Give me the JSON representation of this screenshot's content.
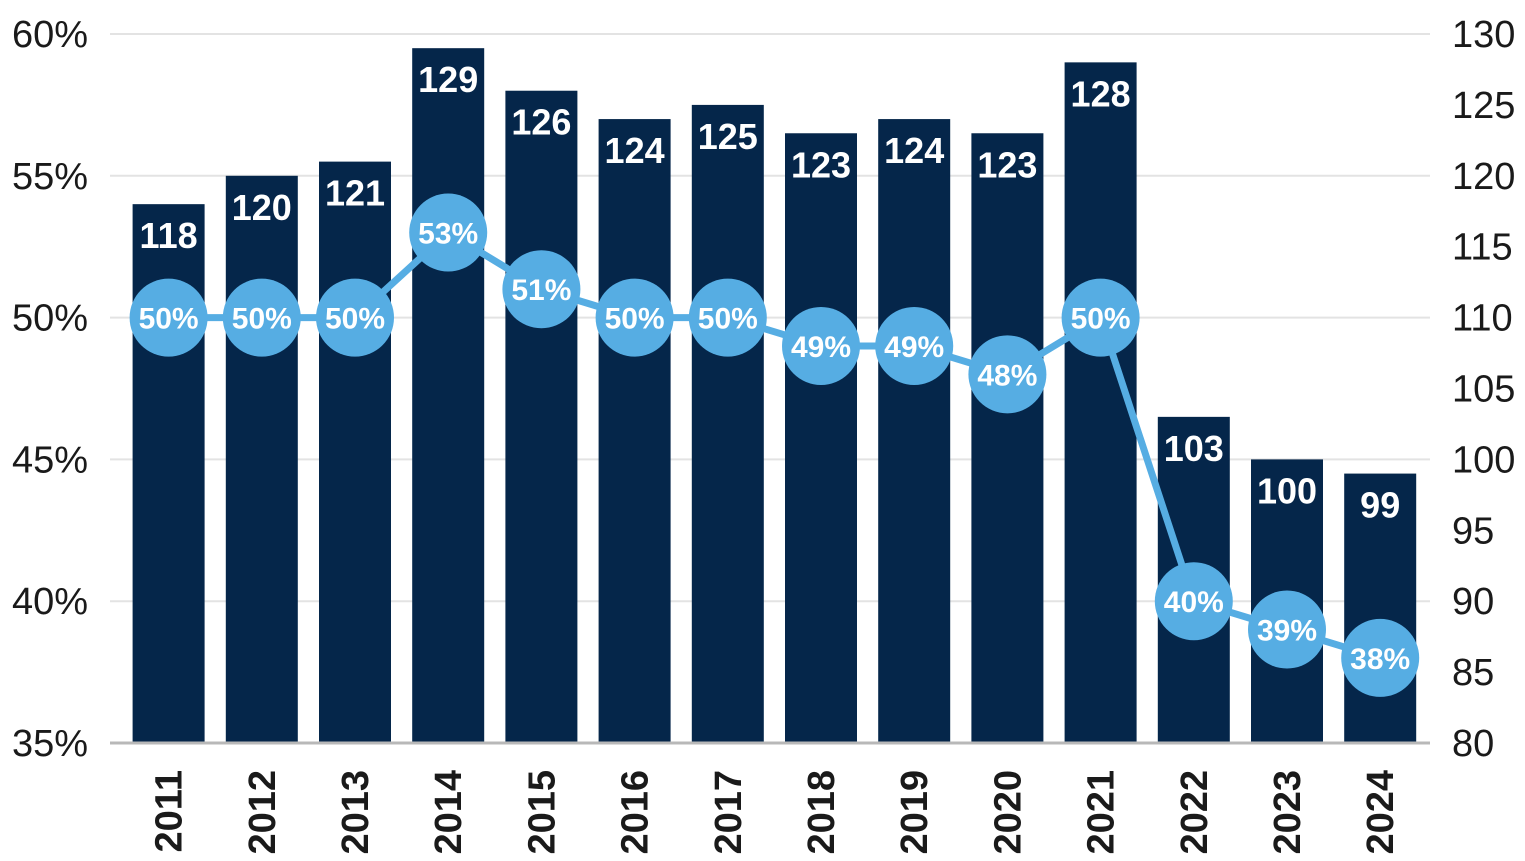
{
  "chart_data": {
    "type": "bar",
    "categories": [
      "2011",
      "2012",
      "2013",
      "2014",
      "2015",
      "2016",
      "2017",
      "2018",
      "2019",
      "2020",
      "2021",
      "2022",
      "2023",
      "2024"
    ],
    "series": [
      {
        "type": "bar",
        "axis": "right",
        "values": [
          118,
          120,
          121,
          129,
          126,
          124,
          125,
          123,
          124,
          123,
          128,
          103,
          100,
          99
        ],
        "labels": [
          "118",
          "120",
          "121",
          "129",
          "126",
          "124",
          "125",
          "123",
          "124",
          "123",
          "128",
          "103",
          "100",
          "99"
        ],
        "color": "#05264a"
      },
      {
        "type": "line",
        "axis": "left",
        "values": [
          50,
          50,
          50,
          53,
          51,
          50,
          50,
          49,
          49,
          48,
          50,
          40,
          39,
          38
        ],
        "labels": [
          "50%",
          "50%",
          "50%",
          "53%",
          "51%",
          "50%",
          "50%",
          "49%",
          "49%",
          "48%",
          "50%",
          "40%",
          "39%",
          "38%"
        ],
        "color": "#56ade3"
      }
    ],
    "y_left": {
      "range": [
        35,
        60
      ],
      "ticks": [
        60,
        55,
        50,
        45,
        40,
        35
      ],
      "tick_labels": [
        "60%",
        "55%",
        "50%",
        "45%",
        "40%",
        "35%"
      ]
    },
    "y_right": {
      "range": [
        80,
        130
      ],
      "ticks": [
        130,
        125,
        120,
        115,
        110,
        105,
        100,
        95,
        90,
        85,
        80
      ],
      "tick_labels": [
        "130",
        "125",
        "120",
        "115",
        "110",
        "105",
        "100",
        "95",
        "90",
        "85",
        "80"
      ]
    },
    "grid": true,
    "legend": "none",
    "title": "",
    "xlabel": "",
    "colors": {
      "grid": "#e3e3e3",
      "axis": "#b8b8b8",
      "text": "#1a1a1a"
    }
  }
}
